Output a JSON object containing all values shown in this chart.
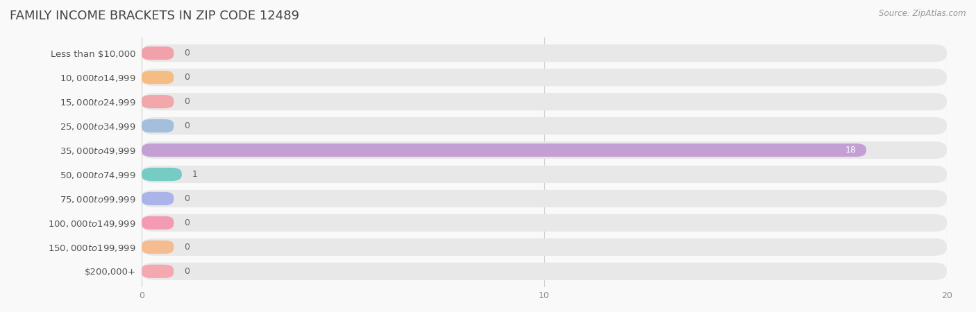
{
  "title": "Family Income Brackets in Zip Code 12489",
  "source": "Source: ZipAtlas.com",
  "categories": [
    "Less than $10,000",
    "$10,000 to $14,999",
    "$15,000 to $24,999",
    "$25,000 to $34,999",
    "$35,000 to $49,999",
    "$50,000 to $74,999",
    "$75,000 to $99,999",
    "$100,000 to $149,999",
    "$150,000 to $199,999",
    "$200,000+"
  ],
  "values": [
    0,
    0,
    0,
    0,
    18,
    1,
    0,
    0,
    0,
    0
  ],
  "bar_colors": [
    "#f2a0aa",
    "#f5bc84",
    "#f2a8aa",
    "#a4bedd",
    "#c49fd4",
    "#76ccc4",
    "#aab4e8",
    "#f49ab4",
    "#f5bc90",
    "#f4a8b0"
  ],
  "background_color": "#f9f9f9",
  "bar_bg_color": "#e8e8e8",
  "plot_bg_color": "#f9f9f9",
  "xlim": [
    0,
    20
  ],
  "xticks": [
    0,
    10,
    20
  ],
  "title_fontsize": 13,
  "label_fontsize": 9.5,
  "tick_fontsize": 9,
  "source_fontsize": 8.5,
  "value_label_fontsize": 9
}
